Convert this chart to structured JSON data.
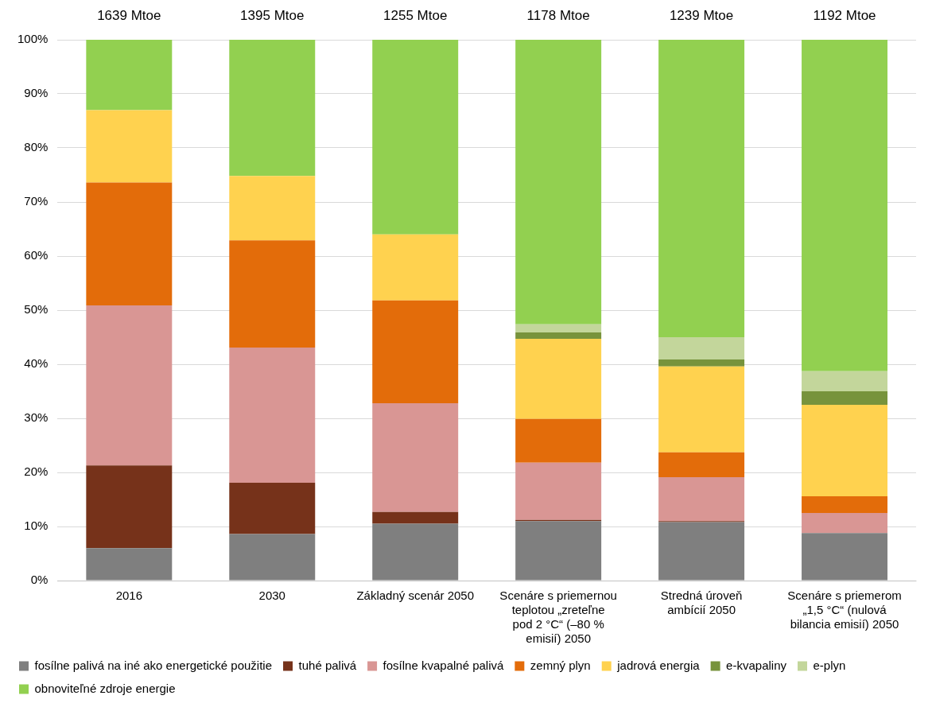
{
  "chart_data": {
    "type": "bar",
    "stacked": true,
    "categories": [
      "2016",
      "2030",
      "Základný scenár 2050",
      "Scenáre s priemernou teplotou „zreteľne pod 2 °C“ (–80 % emisií) 2050",
      "Stredná úroveň ambícií 2050",
      "Scenáre s priemerom „1,5 °C“ (nulová bilancia emisií) 2050"
    ],
    "series": [
      {
        "name": "fosílne palivá na iné ako energetické použitie",
        "color": "#7f7f7f",
        "values": [
          6,
          8.6,
          10.5,
          11,
          10.8,
          8.8
        ]
      },
      {
        "name": "tuhé palivá",
        "color": "#76321a",
        "values": [
          15.3,
          9.5,
          2.2,
          0.2,
          0.2,
          0
        ]
      },
      {
        "name": "fosílne kvapalné palivá",
        "color": "#d99694",
        "values": [
          29.6,
          25,
          20.1,
          10.6,
          8.1,
          3.7
        ]
      },
      {
        "name": "zemný plyn",
        "color": "#e36c0a",
        "values": [
          22.7,
          19.8,
          19,
          8.1,
          4.6,
          3.1
        ]
      },
      {
        "name": "jadrová energia",
        "color": "#ffd24f",
        "values": [
          13.4,
          11.9,
          12.2,
          14.8,
          15.9,
          16.9
        ]
      },
      {
        "name": "e-kvapaliny",
        "color": "#77933c",
        "values": [
          0,
          0,
          0,
          1.2,
          1.3,
          2.5
        ]
      },
      {
        "name": "e-plyn",
        "color": "#c3d69b",
        "values": [
          0,
          0,
          0,
          1.5,
          4.1,
          3.7
        ]
      },
      {
        "name": "obnoviteľné zdroje energie",
        "color": "#92d050",
        "values": [
          13,
          25.2,
          36,
          52.6,
          55,
          61.3
        ]
      }
    ],
    "annotations": [
      {
        "text": "1639 Mtoe",
        "x": "2016",
        "y": 100
      },
      {
        "text": "1395 Mtoe",
        "x": "2030",
        "y": 100
      },
      {
        "text": "1255 Mtoe",
        "x": "Základný scenár 2050",
        "y": 100
      },
      {
        "text": "1178 Mtoe",
        "x": "Scenáre s priemernou teplotou „zreteľne pod 2 °C“ (–80 % emisií) 2050",
        "y": 100
      },
      {
        "text": "1239 Mtoe",
        "x": "Stredná úroveň ambícií 2050",
        "y": 100
      },
      {
        "text": "1192 Mtoe",
        "x": "Scenáre s priemerom „1,5 °C“ (nulová bilancia emisií) 2050",
        "y": 100
      }
    ],
    "ylim": [
      0,
      100
    ],
    "yticks": [
      {
        "value": 0,
        "label": "0%"
      },
      {
        "value": 10,
        "label": "10%"
      },
      {
        "value": 20,
        "label": "20%"
      },
      {
        "value": 30,
        "label": "30%"
      },
      {
        "value": 40,
        "label": "40%"
      },
      {
        "value": 50,
        "label": "50%"
      },
      {
        "value": 60,
        "label": "60%"
      },
      {
        "value": 70,
        "label": "70%"
      },
      {
        "value": 80,
        "label": "80%"
      },
      {
        "value": 90,
        "label": "90%"
      },
      {
        "value": 100,
        "label": "100%"
      }
    ],
    "grid": "y",
    "legend": "bottom"
  }
}
